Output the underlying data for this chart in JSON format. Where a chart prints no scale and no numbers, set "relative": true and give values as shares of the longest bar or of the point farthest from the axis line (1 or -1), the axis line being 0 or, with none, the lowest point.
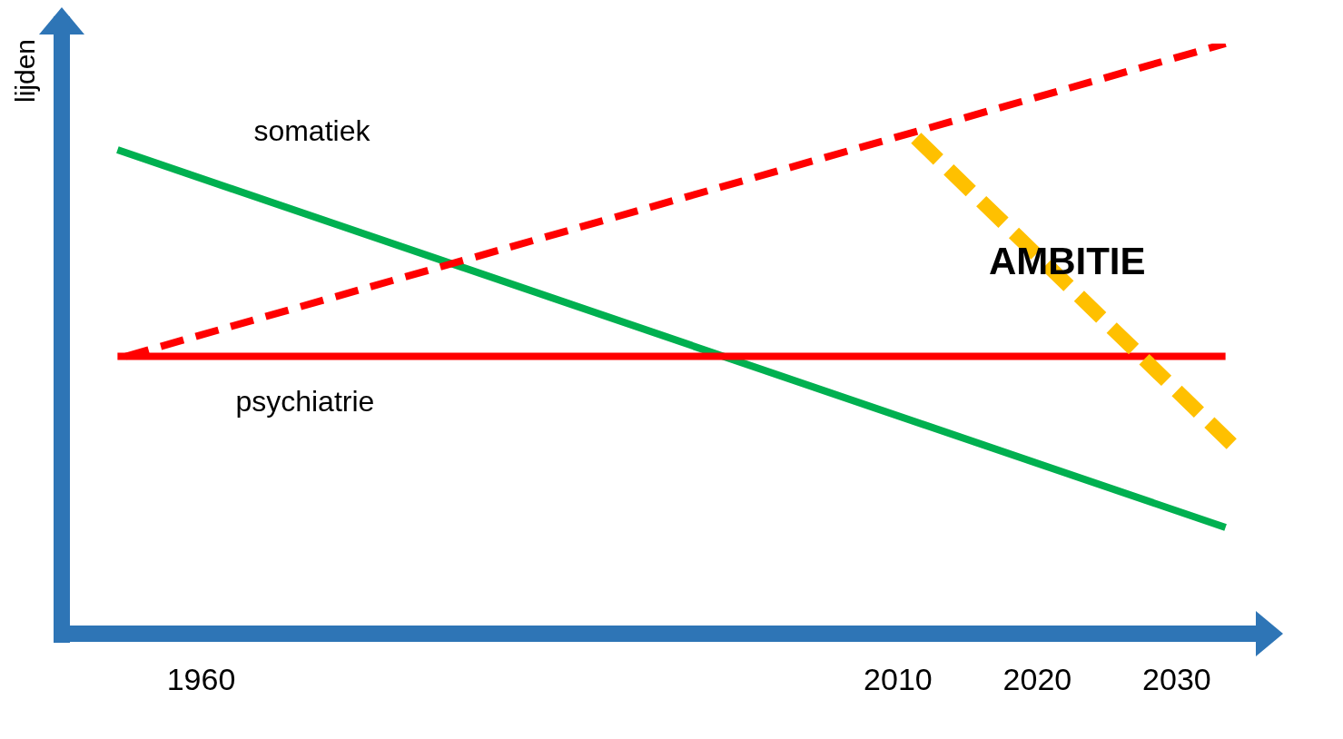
{
  "chart_data": {
    "type": "line",
    "relative": true,
    "ylabel": "lijden",
    "xlim": [
      1950,
      2036
    ],
    "xticks": [
      1960,
      2010,
      2020,
      2030
    ],
    "marker": "none",
    "series": [
      {
        "name": "somatiek",
        "color": "#00b050",
        "x": [
          1954,
          2033.5
        ],
        "values": [
          0.82,
          0.18
        ],
        "line_style": "solid"
      },
      {
        "name": "psychiatrie",
        "color": "#ff0000",
        "x": [
          1954,
          2033.5
        ],
        "values": [
          0.47,
          0.47
        ],
        "line_style": "solid"
      },
      {
        "color": "#ff0000",
        "x": [
          1954.6,
          2033.5
        ],
        "values": [
          0.47,
          1.0
        ],
        "line_style": "dashed"
      },
      {
        "name": "AMBITIE",
        "color": "#ffc000",
        "x": [
          2011.3,
          2034
        ],
        "values": [
          0.84,
          0.32
        ],
        "line_style": "dashed"
      }
    ]
  }
}
